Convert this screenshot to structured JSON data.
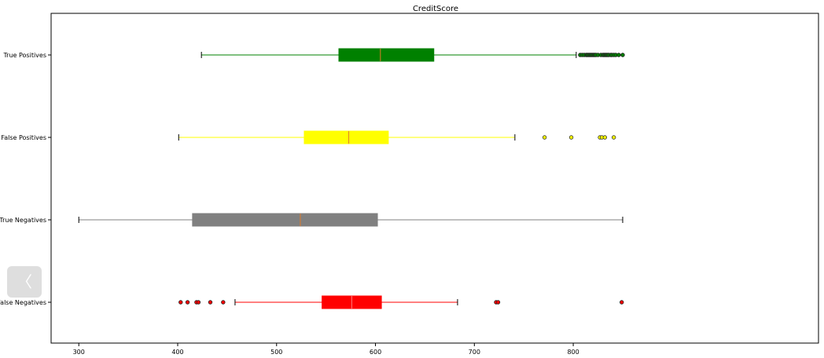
{
  "chart_data": {
    "type": "boxplot",
    "title": "CreditScore",
    "xlabel": "",
    "ylabel": "",
    "xlim": [
      272,
      1048
    ],
    "xticks": [
      300,
      400,
      500,
      600,
      700,
      800
    ],
    "grid": false,
    "series": [
      {
        "name": "True Positives",
        "color": "#008000",
        "outlier_color": "#006400",
        "median_color": "#e07b2a",
        "whisker_low": 424,
        "q1": 563,
        "median": 605,
        "q3": 659,
        "whisker_high": 803,
        "outliers": [
          807,
          809,
          811,
          813,
          814,
          815,
          816,
          817,
          818,
          819,
          820,
          821,
          822,
          823,
          825,
          828,
          830,
          831,
          832,
          833,
          834,
          835,
          836,
          838,
          839,
          841,
          843,
          846,
          850
        ]
      },
      {
        "name": "False Positives",
        "color": "#ffff00",
        "outlier_color": "#cccc00",
        "median_color": "#e07b2a",
        "whisker_low": 401,
        "q1": 528,
        "median": 573,
        "q3": 613,
        "whisker_high": 741,
        "outliers": [
          771,
          798,
          827,
          829,
          832,
          841
        ]
      },
      {
        "name": "True Negatives",
        "color": "#808080",
        "outlier_color": "#606060",
        "median_color": "#e07b2a",
        "whisker_low": 300,
        "q1": 415,
        "median": 524,
        "q3": 602,
        "whisker_high": 850,
        "outliers": []
      },
      {
        "name": "False Negatives",
        "color": "#ff0000",
        "outlier_color": "#8b0000",
        "median_color": "#ff8080",
        "whisker_low": 458,
        "q1": 546,
        "median": 576,
        "q3": 606,
        "whisker_high": 683,
        "outliers": [
          403,
          410,
          419,
          421,
          433,
          446,
          722,
          724,
          849
        ]
      }
    ]
  },
  "nav": {
    "back_icon": "chevron-left-icon",
    "back_glyph": "〈"
  }
}
